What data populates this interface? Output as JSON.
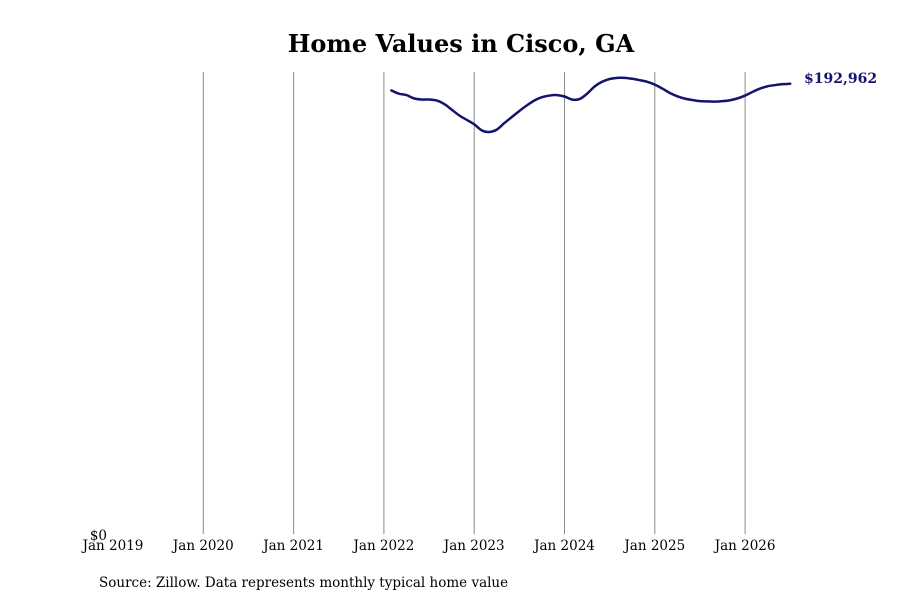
{
  "chart_data": {
    "type": "line",
    "title": "Home Values in Cisco, GA",
    "xlabel": "",
    "ylabel": "",
    "x_ticks": [
      "Jan 2019",
      "Jan 2020",
      "Jan 2021",
      "Jan 2022",
      "Jan 2023",
      "Jan 2024",
      "Jan 2025",
      "Jan 2026"
    ],
    "y_ticks": [
      "$0"
    ],
    "xlim": [
      "2019-01",
      "2026-08"
    ],
    "ylim": [
      0,
      198000
    ],
    "grid": "vertical",
    "legend": "none",
    "line_color": "#14146e",
    "end_label": "$192,962",
    "series": [
      {
        "x": [
          "2022-02",
          "2022-03",
          "2022-04",
          "2022-05",
          "2022-06",
          "2022-07",
          "2022-08",
          "2022-09",
          "2022-10",
          "2022-11",
          "2022-12",
          "2023-01",
          "2023-02",
          "2023-03",
          "2023-04",
          "2023-05",
          "2023-06",
          "2023-07",
          "2023-08",
          "2023-09",
          "2023-10",
          "2023-11",
          "2023-12",
          "2024-01",
          "2024-02",
          "2024-03",
          "2024-04",
          "2024-05",
          "2024-06",
          "2024-07",
          "2024-08",
          "2024-09",
          "2024-10",
          "2024-11",
          "2024-12",
          "2025-01",
          "2025-02",
          "2025-03",
          "2025-04",
          "2025-05",
          "2025-06",
          "2025-07",
          "2025-08",
          "2025-09",
          "2025-10",
          "2025-11",
          "2025-12",
          "2026-01",
          "2026-02",
          "2026-03",
          "2026-04",
          "2026-05",
          "2026-06",
          "2026-07"
        ],
        "values": [
          190100,
          188700,
          188100,
          186700,
          186200,
          186200,
          185800,
          184300,
          181900,
          179400,
          177500,
          175600,
          173000,
          172300,
          173300,
          176100,
          178700,
          181300,
          183700,
          185800,
          187200,
          187900,
          188100,
          187500,
          186200,
          186400,
          188700,
          191800,
          193800,
          195000,
          195500,
          195500,
          195100,
          194500,
          193800,
          192600,
          190900,
          189000,
          187600,
          186600,
          186000,
          185500,
          185400,
          185300,
          185500,
          185900,
          186700,
          187900,
          189500,
          190900,
          191900,
          192400,
          192800,
          192962
        ]
      }
    ]
  },
  "footer": {
    "source": "Source: Zillow. Data represents monthly typical home value"
  }
}
